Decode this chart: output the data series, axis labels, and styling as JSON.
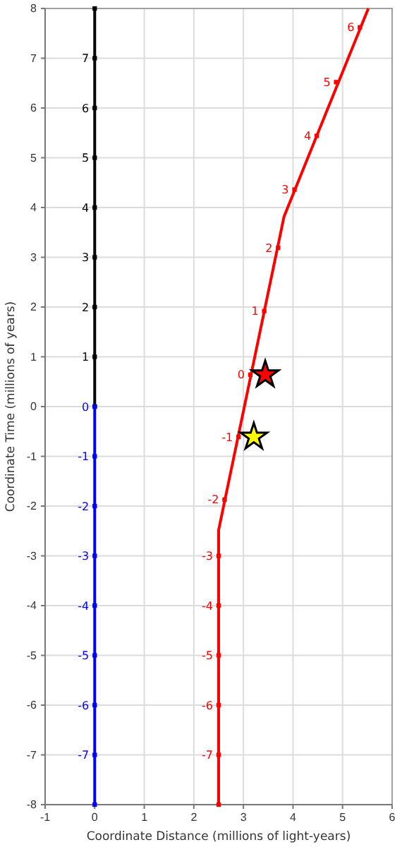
{
  "chart_data": {
    "type": "line",
    "xlabel": "Coordinate Distance (millions of light-years)",
    "ylabel": "Coordinate Time (millions of years)",
    "xlim": [
      -1,
      6
    ],
    "ylim": [
      -8,
      8
    ],
    "xticks": [
      -1,
      0,
      1,
      2,
      3,
      4,
      5,
      6
    ],
    "yticks": [
      -8,
      -7,
      -6,
      -5,
      -4,
      -3,
      -2,
      -1,
      0,
      1,
      2,
      3,
      4,
      5,
      6,
      7,
      8
    ],
    "grid": true,
    "series": [
      {
        "color": "#000000",
        "marker": "square",
        "x": [
          0,
          0,
          0,
          0,
          0,
          0,
          0,
          0,
          0
        ],
        "values": [
          0,
          1,
          2,
          3,
          4,
          5,
          6,
          7,
          8
        ]
      },
      {
        "color": "#0000ff",
        "marker": "square",
        "x": [
          0,
          0,
          0,
          0,
          0,
          0,
          0,
          0,
          0
        ],
        "values": [
          0,
          -1,
          -2,
          -3,
          -4,
          -5,
          -6,
          -7,
          -8
        ]
      },
      {
        "color": "#ff0000",
        "marker": "none",
        "x": [
          2.5,
          2.5,
          3.82,
          5.52
        ],
        "values": [
          -8,
          -2.48,
          3.82,
          8
        ]
      },
      {
        "type": "scatter",
        "color": "#ff0000",
        "marker": "square",
        "x": [
          2.5,
          2.5,
          2.5,
          2.5,
          2.5,
          2.5,
          2.62,
          2.9,
          3.14,
          3.42,
          3.7,
          4.03,
          4.48,
          4.87,
          5.35
        ],
        "values": [
          -8,
          -7,
          -6,
          -5,
          -4,
          -3,
          -1.87,
          -0.61,
          0.64,
          1.92,
          3.19,
          4.36,
          5.44,
          6.52,
          7.62
        ]
      },
      {
        "type": "scatter",
        "marker": "star",
        "colors": [
          "#ff0000",
          "#ffff00"
        ],
        "x": [
          3.44,
          3.21
        ],
        "values": [
          0.64,
          -0.61
        ]
      }
    ],
    "annotations": [
      {
        "text": "7",
        "x": 0,
        "y": 7
      },
      {
        "text": "6",
        "x": 0,
        "y": 6
      },
      {
        "text": "5",
        "x": 0,
        "y": 5
      },
      {
        "text": "4",
        "x": 0,
        "y": 4
      },
      {
        "text": "3",
        "x": 0,
        "y": 3
      },
      {
        "text": "2",
        "x": 0,
        "y": 2
      },
      {
        "text": "1",
        "x": 0,
        "y": 1
      },
      {
        "text": "0",
        "x": 0,
        "y": 0
      },
      {
        "text": "-1",
        "x": 0,
        "y": -1
      },
      {
        "text": "-2",
        "x": 0,
        "y": -2
      },
      {
        "text": "-3",
        "x": 0,
        "y": -3
      },
      {
        "text": "-4",
        "x": 0,
        "y": -4
      },
      {
        "text": "-5",
        "x": 0,
        "y": -5
      },
      {
        "text": "-6",
        "x": 0,
        "y": -6
      },
      {
        "text": "-7",
        "x": 0,
        "y": -7
      },
      {
        "text": "-7",
        "x": 2.5,
        "y": -7
      },
      {
        "text": "-6",
        "x": 2.5,
        "y": -6
      },
      {
        "text": "-5",
        "x": 2.5,
        "y": -5
      },
      {
        "text": "-4",
        "x": 2.5,
        "y": -4
      },
      {
        "text": "-3",
        "x": 2.5,
        "y": -3
      },
      {
        "text": "-2",
        "x": 2.62,
        "y": -1.87
      },
      {
        "text": "-1",
        "x": 2.9,
        "y": -0.61
      },
      {
        "text": "0",
        "x": 3.14,
        "y": 0.64
      },
      {
        "text": "1",
        "x": 3.42,
        "y": 1.92
      },
      {
        "text": "2",
        "x": 3.7,
        "y": 3.19
      },
      {
        "text": "3",
        "x": 4.03,
        "y": 4.36
      },
      {
        "text": "4",
        "x": 4.48,
        "y": 5.44
      },
      {
        "text": "5",
        "x": 4.87,
        "y": 6.52
      },
      {
        "text": "6",
        "x": 5.35,
        "y": 7.62
      }
    ]
  }
}
